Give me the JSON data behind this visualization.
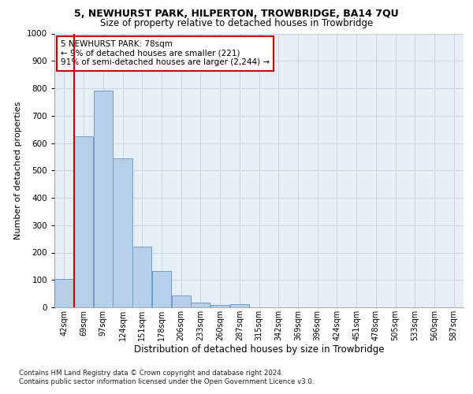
{
  "title": "5, NEWHURST PARK, HILPERTON, TROWBRIDGE, BA14 7QU",
  "subtitle": "Size of property relative to detached houses in Trowbridge",
  "xlabel": "Distribution of detached houses by size in Trowbridge",
  "ylabel": "Number of detached properties",
  "bar_values": [
    103,
    625,
    790,
    543,
    222,
    133,
    42,
    16,
    10,
    12,
    0,
    0,
    0,
    0,
    0,
    0,
    0,
    0,
    0,
    0,
    0
  ],
  "bar_labels": [
    "42sqm",
    "69sqm",
    "97sqm",
    "124sqm",
    "151sqm",
    "178sqm",
    "206sqm",
    "233sqm",
    "260sqm",
    "287sqm",
    "315sqm",
    "342sqm",
    "369sqm",
    "396sqm",
    "424sqm",
    "451sqm",
    "478sqm",
    "505sqm",
    "533sqm",
    "560sqm",
    "587sqm"
  ],
  "bar_color": "#b8cfe8",
  "bar_edge_color": "#6a9fd0",
  "grid_color": "#c8d4e4",
  "bg_color": "#e8eef6",
  "vline_x": 0.5,
  "vline_color": "#cc0000",
  "annotation_text": "5 NEWHURST PARK: 78sqm\n← 9% of detached houses are smaller (221)\n91% of semi-detached houses are larger (2,244) →",
  "annotation_box_color": "#cc0000",
  "ylim": [
    0,
    1000
  ],
  "yticks": [
    0,
    100,
    200,
    300,
    400,
    500,
    600,
    700,
    800,
    900,
    1000
  ],
  "footer_line1": "Contains HM Land Registry data © Crown copyright and database right 2024.",
  "footer_line2": "Contains public sector information licensed under the Open Government Licence v3.0."
}
